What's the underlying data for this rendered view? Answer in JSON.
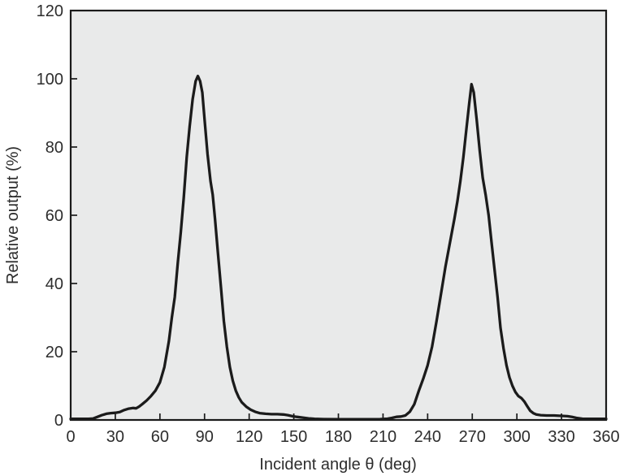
{
  "figure": {
    "plot_background": "#e9eaea",
    "outer_background": "#ffffff",
    "axis_color": "#1a1a1a",
    "curve_color": "#1b1b1b",
    "text_color": "#2d2d2d"
  },
  "chart_data": {
    "type": "line",
    "title": "",
    "xlabel": "Incident angle θ (deg)",
    "ylabel": "Relative output (%)",
    "xlim": [
      0,
      360
    ],
    "ylim": [
      0,
      120
    ],
    "xticks": [
      0,
      30,
      60,
      90,
      120,
      150,
      180,
      210,
      240,
      270,
      300,
      330,
      360
    ],
    "yticks": [
      0,
      20,
      40,
      60,
      80,
      100,
      120
    ],
    "grid": false,
    "legend": false,
    "series": [
      {
        "name": "relative_output",
        "points": [
          [
            0,
            0.3
          ],
          [
            6,
            0.3
          ],
          [
            12,
            0.3
          ],
          [
            15,
            0.4
          ],
          [
            18,
            0.9
          ],
          [
            21,
            1.4
          ],
          [
            24,
            1.8
          ],
          [
            27,
            2.0
          ],
          [
            30,
            2.1
          ],
          [
            33,
            2.3
          ],
          [
            36,
            2.9
          ],
          [
            39,
            3.3
          ],
          [
            42,
            3.5
          ],
          [
            44,
            3.4
          ],
          [
            46,
            3.9
          ],
          [
            48,
            4.6
          ],
          [
            51,
            5.7
          ],
          [
            54,
            7.0
          ],
          [
            57,
            8.6
          ],
          [
            60,
            11
          ],
          [
            63,
            15.5
          ],
          [
            66,
            23
          ],
          [
            68,
            30
          ],
          [
            70,
            36
          ],
          [
            72,
            46
          ],
          [
            74,
            55
          ],
          [
            76,
            65
          ],
          [
            78,
            77
          ],
          [
            80,
            86
          ],
          [
            82,
            94
          ],
          [
            84,
            99.3
          ],
          [
            85.5,
            100.8
          ],
          [
            87,
            99.3
          ],
          [
            88.5,
            96
          ],
          [
            90,
            88
          ],
          [
            92,
            78
          ],
          [
            94,
            70
          ],
          [
            95.5,
            66
          ],
          [
            97,
            59
          ],
          [
            99,
            49
          ],
          [
            101,
            39
          ],
          [
            103,
            29
          ],
          [
            105,
            21.5
          ],
          [
            107,
            15.5
          ],
          [
            109,
            11.5
          ],
          [
            111,
            8.6
          ],
          [
            113,
            6.6
          ],
          [
            115,
            5.2
          ],
          [
            118,
            3.9
          ],
          [
            121,
            3.0
          ],
          [
            124,
            2.4
          ],
          [
            127,
            2.0
          ],
          [
            131,
            1.8
          ],
          [
            135,
            1.7
          ],
          [
            139,
            1.7
          ],
          [
            143,
            1.6
          ],
          [
            146,
            1.4
          ],
          [
            149,
            1.1
          ],
          [
            152,
            0.9
          ],
          [
            156,
            0.7
          ],
          [
            160,
            0.45
          ],
          [
            164,
            0.3
          ],
          [
            170,
            0.25
          ],
          [
            180,
            0.2
          ],
          [
            190,
            0.2
          ],
          [
            200,
            0.2
          ],
          [
            208,
            0.25
          ],
          [
            213,
            0.35
          ],
          [
            216,
            0.6
          ],
          [
            219,
            0.9
          ],
          [
            222,
            1.0
          ],
          [
            225,
            1.3
          ],
          [
            228,
            2.4
          ],
          [
            231,
            4.6
          ],
          [
            234,
            8.5
          ],
          [
            237,
            12
          ],
          [
            240,
            16
          ],
          [
            243,
            21.5
          ],
          [
            246,
            29
          ],
          [
            249,
            37
          ],
          [
            252,
            45
          ],
          [
            255,
            52
          ],
          [
            258,
            59
          ],
          [
            260,
            64
          ],
          [
            262,
            70
          ],
          [
            264,
            77
          ],
          [
            266,
            85
          ],
          [
            268,
            93
          ],
          [
            269.5,
            98.4
          ],
          [
            271,
            96
          ],
          [
            273,
            88
          ],
          [
            275,
            79
          ],
          [
            277,
            71
          ],
          [
            279,
            66
          ],
          [
            281,
            60
          ],
          [
            283,
            52
          ],
          [
            285,
            44
          ],
          [
            287,
            36
          ],
          [
            289,
            27
          ],
          [
            291,
            21
          ],
          [
            293,
            16
          ],
          [
            295,
            12.5
          ],
          [
            297,
            10
          ],
          [
            299,
            8.2
          ],
          [
            301,
            7.0
          ],
          [
            303,
            6.4
          ],
          [
            305,
            5.4
          ],
          [
            307,
            4.0
          ],
          [
            309,
            2.7
          ],
          [
            311,
            2.0
          ],
          [
            313,
            1.6
          ],
          [
            316,
            1.4
          ],
          [
            320,
            1.3
          ],
          [
            325,
            1.3
          ],
          [
            330,
            1.2
          ],
          [
            334,
            1.1
          ],
          [
            337,
            0.9
          ],
          [
            340,
            0.6
          ],
          [
            344,
            0.35
          ],
          [
            350,
            0.3
          ],
          [
            356,
            0.3
          ],
          [
            360,
            0.3
          ]
        ]
      }
    ]
  }
}
